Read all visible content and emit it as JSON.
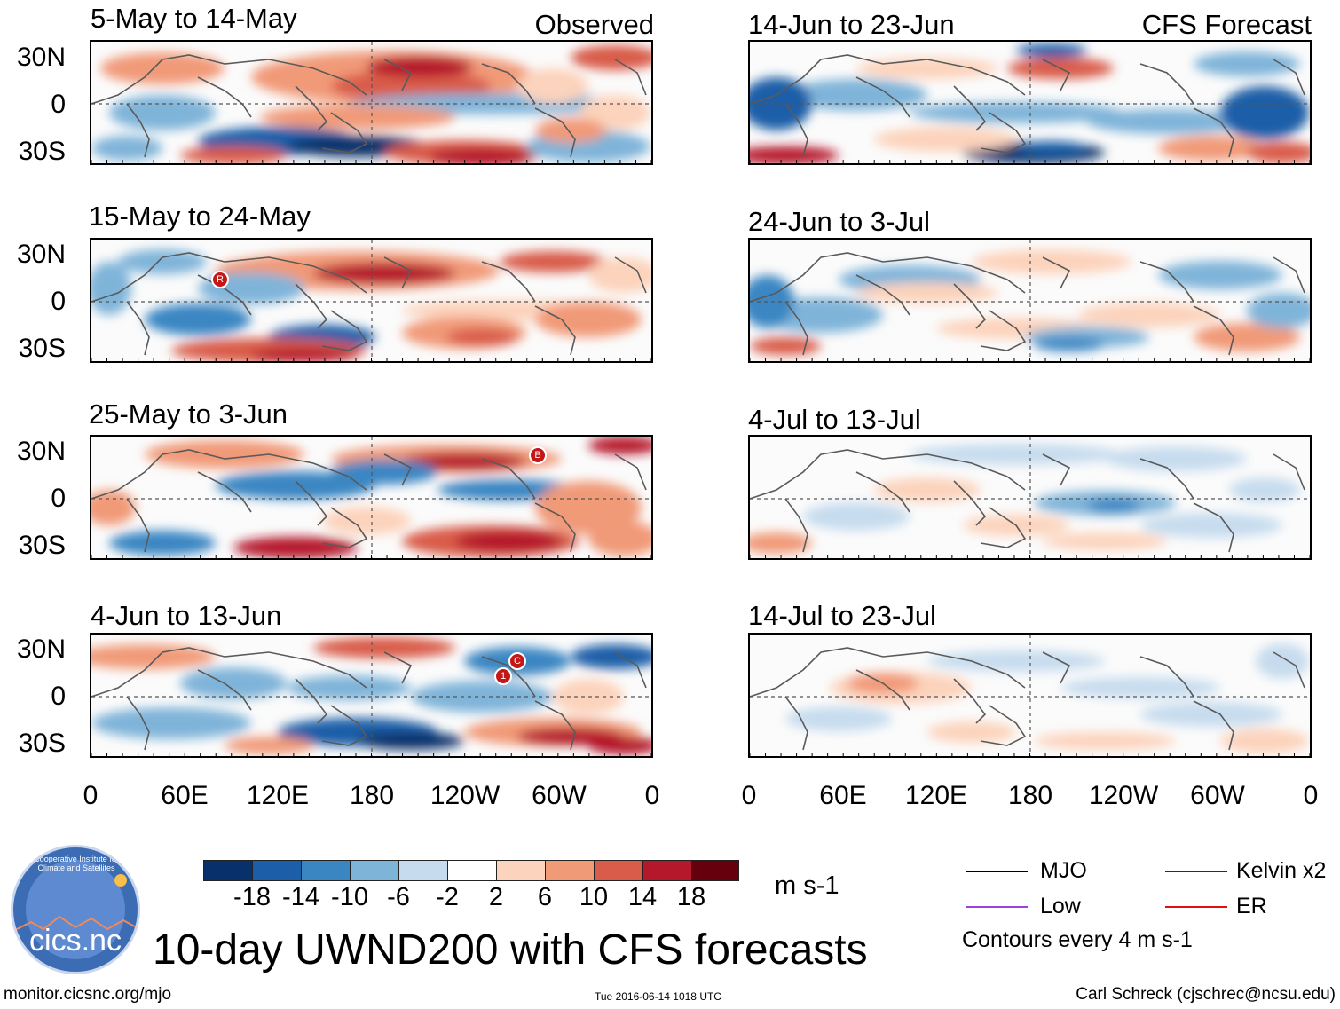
{
  "figure_title": "10-day UWND200 with CFS forecasts",
  "observed_label": "Observed",
  "forecast_label": "CFS Forecast",
  "panels_observed": [
    {
      "id": "obs1",
      "period": "5-May to 14-May"
    },
    {
      "id": "obs2",
      "period": "15-May to 24-May"
    },
    {
      "id": "obs3",
      "period": "25-May to 3-Jun"
    },
    {
      "id": "obs4",
      "period": "4-Jun to 13-Jun"
    }
  ],
  "panels_forecast": [
    {
      "id": "fc1",
      "period": "14-Jun to 23-Jun"
    },
    {
      "id": "fc2",
      "period": "24-Jun to 3-Jul"
    },
    {
      "id": "fc3",
      "period": "4-Jul to 13-Jul"
    },
    {
      "id": "fc4",
      "period": "14-Jul to 23-Jul"
    }
  ],
  "lat_labels": [
    "30N",
    "0",
    "30S"
  ],
  "lon_labels": [
    "0",
    "60E",
    "120E",
    "180",
    "120W",
    "60W",
    "0"
  ],
  "storm_markers": [
    {
      "panel": "obs2",
      "label": "R"
    },
    {
      "panel": "obs3",
      "label": "B"
    },
    {
      "panel": "obs4",
      "label": "1"
    },
    {
      "panel": "obs4",
      "label": "C"
    }
  ],
  "colorbar": {
    "colors": [
      "#08306b",
      "#1c5ea8",
      "#3a86c3",
      "#7fb4d9",
      "#c6dcee",
      "#ffffff",
      "#fcd3bc",
      "#f19a78",
      "#d95b4a",
      "#b5182b",
      "#67000d"
    ],
    "labels": [
      "-18",
      "-14",
      "-10",
      "-6",
      "-2",
      "2",
      "6",
      "10",
      "14",
      "18"
    ],
    "units": "m s-1"
  },
  "legend": {
    "items": [
      {
        "name": "MJO",
        "color": "#000000"
      },
      {
        "name": "Kelvin x2",
        "color": "#1a1acc"
      },
      {
        "name": "Low",
        "color": "#a03ee0"
      },
      {
        "name": "ER",
        "color": "#e01010"
      }
    ],
    "contour_note": "Contours every 4 m s-1"
  },
  "logo_text": "cics.nc",
  "logo_arc_text": "Cooperative Institute for Climate and Satellites",
  "source_url": "monitor.cicsnc.org/mjo",
  "timestamp": "Tue 2016-06-14 1018 UTC",
  "author": "Carl Schreck (cjschrec@ncsu.edu)"
}
